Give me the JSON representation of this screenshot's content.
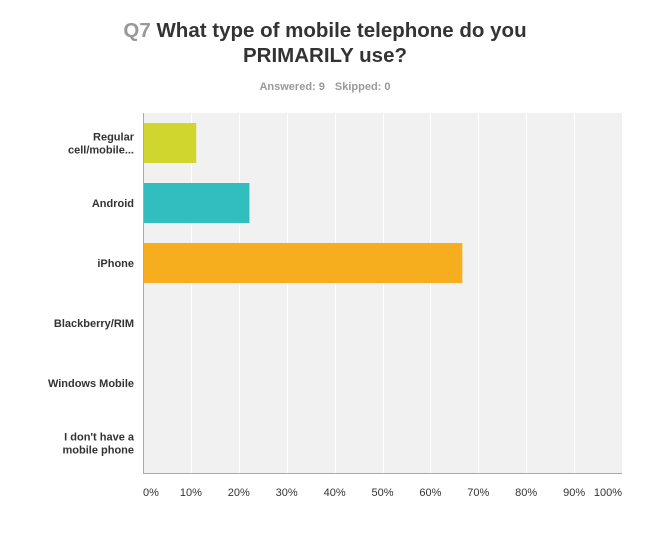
{
  "header": {
    "question_number": "Q7",
    "title_line1": "What type of mobile telephone do you",
    "title_line2": "PRIMARILY use?",
    "answered_label": "Answered: 9",
    "skipped_label": "Skipped: 0"
  },
  "colors": {
    "plot_background": "#f1f1f1",
    "gridline": "#ffffff",
    "axis": "#aaaaaa"
  },
  "chart_data": {
    "type": "bar",
    "orientation": "horizontal",
    "title": "Q7 What type of mobile telephone do you PRIMARILY use?",
    "categories": [
      [
        "Regular",
        "cell/mobile..."
      ],
      [
        "Android"
      ],
      [
        "iPhone"
      ],
      [
        "Blackberry/RIM"
      ],
      [
        "Windows Mobile"
      ],
      [
        "I don't have a",
        "mobile phone"
      ]
    ],
    "values": [
      11.11,
      22.22,
      66.67,
      0,
      0,
      0
    ],
    "bar_colors": [
      "#d0d62d",
      "#32bebf",
      "#f6ae1f",
      "#cccccc",
      "#cccccc",
      "#cccccc"
    ],
    "xlim": [
      0,
      100
    ],
    "x_ticks": [
      "0%",
      "10%",
      "20%",
      "30%",
      "40%",
      "50%",
      "60%",
      "70%",
      "80%",
      "90%",
      "100%"
    ],
    "grid": true,
    "legend": "none"
  }
}
